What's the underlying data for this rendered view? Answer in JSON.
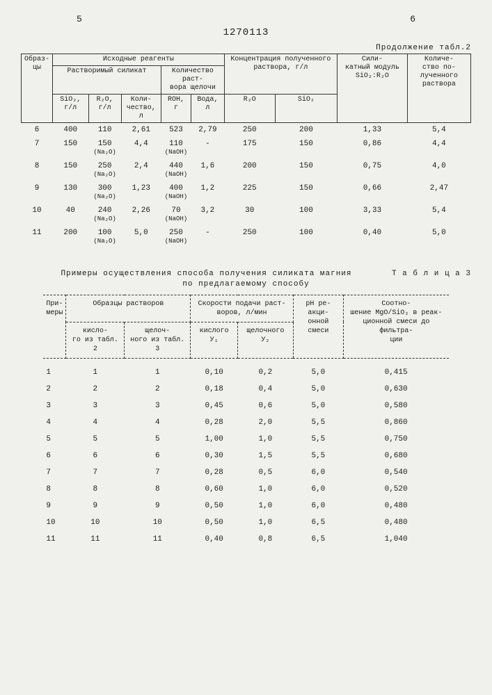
{
  "doc_number": "1270113",
  "col_left": "5",
  "col_right": "6",
  "table2": {
    "cont_label": "Продолжение табл.2",
    "h": {
      "c1": "Образ-\nцы",
      "c2": "Исходные реагенты",
      "c3": "Концентрация полученного раствора, г/л",
      "c4": "Сили-\nкатный модуль SiO₂:R₂O",
      "c5": "Количе-\nство по-\nлученного раствора",
      "c2a": "Растворимый силикат",
      "c2b": "Количество раст-\nвора щелочи",
      "c2a1": "SiO₂, г/л",
      "c2a2": "R₂O, г/л",
      "c2a3": "Коли-\nчество, л",
      "c2b1": "ROH, г",
      "c2b2": "Вода, л",
      "c3a": "R₂O",
      "c3b": "SiO₂"
    },
    "rows": [
      {
        "n": "6",
        "sio2": "400",
        "r2o": "110",
        "r2o_sub": "",
        "qty": "2,61",
        "roh": "523",
        "roh_sub": "",
        "water": "2,79",
        "cr2o": "250",
        "csio2": "200",
        "mod": "1,33",
        "out": "5,4"
      },
      {
        "n": "7",
        "sio2": "150",
        "r2o": "150",
        "r2o_sub": "(Na₂O)",
        "qty": "4,4",
        "roh": "110",
        "roh_sub": "(NaOH)",
        "water": "-",
        "cr2o": "175",
        "csio2": "150",
        "mod": "0,86",
        "out": "4,4"
      },
      {
        "n": "8",
        "sio2": "150",
        "r2o": "250",
        "r2o_sub": "(Na₂O)",
        "qty": "2,4",
        "roh": "440",
        "roh_sub": "(NaOH)",
        "water": "1,6",
        "cr2o": "200",
        "csio2": "150",
        "mod": "0,75",
        "out": "4,0"
      },
      {
        "n": "9",
        "sio2": "130",
        "r2o": "300",
        "r2o_sub": "(Na₂O)",
        "qty": "1,23",
        "roh": "400",
        "roh_sub": "(NaOH)",
        "water": "1,2",
        "cr2o": "225",
        "csio2": "150",
        "mod": "0,66",
        "out": "2,47"
      },
      {
        "n": "10",
        "sio2": "40",
        "r2o": "240",
        "r2o_sub": "(Na₂O)",
        "qty": "2,26",
        "roh": "70",
        "roh_sub": "(NaOH)",
        "water": "3,2",
        "cr2o": "30",
        "csio2": "100",
        "mod": "3,33",
        "out": "5,4"
      },
      {
        "n": "11",
        "sio2": "200",
        "r2o": "100",
        "r2o_sub": "(Na₂O)",
        "qty": "5,0",
        "roh": "250",
        "roh_sub": "(NaOH)",
        "water": "-",
        "cr2o": "250",
        "csio2": "100",
        "mod": "0,40",
        "out": "5,0"
      }
    ]
  },
  "table3": {
    "caption_a": "Т а б л и ц а   3",
    "caption_b": "Примеры осуществления способа получения силиката магния",
    "caption_c": "по предлагаемому способу",
    "h": {
      "c1": "При-\nмеры",
      "c2": "Образцы растворов",
      "c3": "Скорости подачи раст-\nворов, л/мин",
      "c4": "рН ре-\nакци-\nонной смеси",
      "c5": "Соотно-\nшение MgO/SiO₂ в реак-\nционной смеси до фильтра-\nции",
      "c2a": "кисло-\nго из табл. 2",
      "c2b": "щелоч-\nного из табл. 3",
      "c3a": "кислого У₁",
      "c3b": "щелочного У₂"
    },
    "rows": [
      {
        "n": "1",
        "a": "1",
        "b": "1",
        "v1": "0,10",
        "v2": "0,2",
        "ph": "5,0",
        "r": "0,415"
      },
      {
        "n": "2",
        "a": "2",
        "b": "2",
        "v1": "0,18",
        "v2": "0,4",
        "ph": "5,0",
        "r": "0,630"
      },
      {
        "n": "3",
        "a": "3",
        "b": "3",
        "v1": "0,45",
        "v2": "0,6",
        "ph": "5,0",
        "r": "0,580"
      },
      {
        "n": "4",
        "a": "4",
        "b": "4",
        "v1": "0,28",
        "v2": "2,0",
        "ph": "5,5",
        "r": "0,860"
      },
      {
        "n": "5",
        "a": "5",
        "b": "5",
        "v1": "1,00",
        "v2": "1,0",
        "ph": "5,5",
        "r": "0,750"
      },
      {
        "n": "6",
        "a": "6",
        "b": "6",
        "v1": "0,30",
        "v2": "1,5",
        "ph": "5,5",
        "r": "0,680"
      },
      {
        "n": "7",
        "a": "7",
        "b": "7",
        "v1": "0,28",
        "v2": "0,5",
        "ph": "6,0",
        "r": "0,540"
      },
      {
        "n": "8",
        "a": "8",
        "b": "8",
        "v1": "0,60",
        "v2": "1,0",
        "ph": "6,0",
        "r": "0,520"
      },
      {
        "n": "9",
        "a": "9",
        "b": "9",
        "v1": "0,50",
        "v2": "1,0",
        "ph": "6,0",
        "r": "0,480"
      },
      {
        "n": "10",
        "a": "10",
        "b": "10",
        "v1": "0,50",
        "v2": "1,0",
        "ph": "6,5",
        "r": "0,480"
      },
      {
        "n": "11",
        "a": "11",
        "b": "11",
        "v1": "0,40",
        "v2": "0,8",
        "ph": "6,5",
        "r": "1,040"
      }
    ]
  }
}
